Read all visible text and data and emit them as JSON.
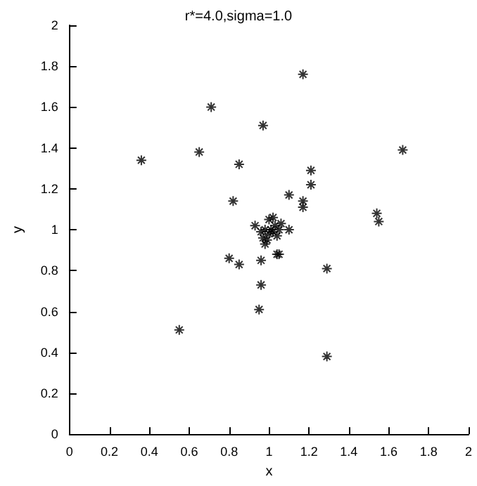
{
  "chart_data": {
    "type": "scatter",
    "title": "r*=4.0,sigma=1.0",
    "xlabel": "x",
    "ylabel": "y",
    "marker": "cross",
    "grid": false,
    "x": [
      0.36,
      0.55,
      0.65,
      0.71,
      0.85,
      0.82,
      0.8,
      0.85,
      0.93,
      0.95,
      0.96,
      0.96,
      0.97,
      1.17,
      1.21,
      1.21,
      1.17,
      1.17,
      1.1,
      1.1,
      1.05,
      1.04,
      1.29,
      1.29,
      1.54,
      1.55,
      1.67,
      1.0,
      1.02,
      0.98,
      1.0,
      1.03,
      1.05,
      0.99,
      1.01,
      0.97,
      1.04,
      1.02,
      0.98,
      1.06,
      0.96
    ],
    "series": [
      {
        "color": "#000000",
        "values": [
          1.34,
          0.51,
          1.38,
          1.6,
          1.32,
          1.14,
          0.86,
          0.83,
          1.02,
          0.61,
          0.73,
          0.85,
          1.51,
          1.76,
          1.29,
          1.22,
          1.14,
          1.11,
          1.17,
          1.0,
          0.88,
          0.88,
          0.81,
          0.38,
          1.08,
          1.04,
          1.39,
          1.05,
          1.06,
          1.0,
          0.98,
          1.02,
          1.0,
          0.95,
          1.0,
          0.96,
          0.97,
          0.99,
          0.93,
          1.03,
          0.99
        ]
      }
    ],
    "xlim": [
      0,
      2
    ],
    "ylim": [
      0,
      2
    ],
    "xticks": [
      0,
      0.2,
      0.4,
      0.6,
      0.8,
      1,
      1.2,
      1.4,
      1.6,
      1.8,
      2
    ],
    "yticks": [
      0,
      0.2,
      0.4,
      0.6,
      0.8,
      1,
      1.2,
      1.4,
      1.6,
      1.8,
      2
    ]
  }
}
